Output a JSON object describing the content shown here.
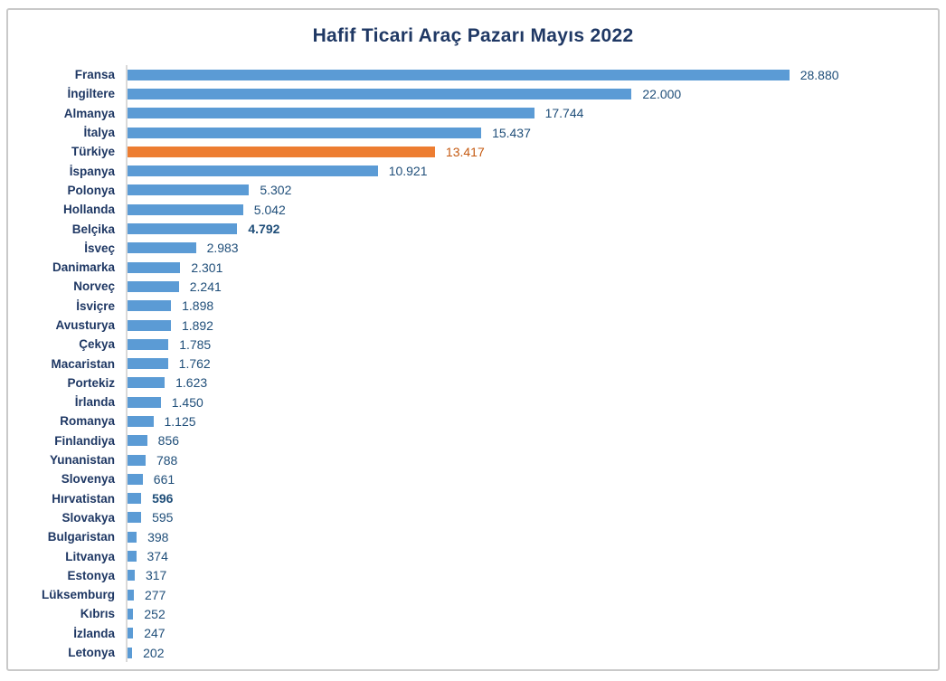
{
  "colors": {
    "bar": "#5B9BD5",
    "highlight_bar": "#ED7D31",
    "category_label": "#1F3864",
    "value_label": "#1F4E79",
    "highlight_value_label": "#C55A11",
    "axis_line": "#D9D9D9",
    "border": "#C9C9C9"
  },
  "chart_data": {
    "type": "bar",
    "orientation": "horizontal",
    "title": "Hafif Ticari Araç Pazarı Mayıs 2022",
    "categories": [
      "Fransa",
      "İngiltere",
      "Almanya",
      "İtalya",
      "Türkiye",
      "İspanya",
      "Polonya",
      "Hollanda",
      "Belçika",
      "İsveç",
      "Danimarka",
      "Norveç",
      "İsviçre",
      "Avusturya",
      "Çekya",
      "Macaristan",
      "Portekiz",
      "İrlanda",
      "Romanya",
      "Finlandiya",
      "Yunanistan",
      "Slovenya",
      "Hırvatistan",
      "Slovakya",
      "Bulgaristan",
      "Litvanya",
      "Estonya",
      "Lüksemburg",
      "Kıbrıs",
      "İzlanda",
      "Letonya"
    ],
    "values": [
      28880,
      22000,
      17744,
      15437,
      13417,
      10921,
      5302,
      5042,
      4792,
      2983,
      2301,
      2241,
      1898,
      1892,
      1785,
      1762,
      1623,
      1450,
      1125,
      856,
      788,
      661,
      596,
      595,
      398,
      374,
      317,
      277,
      252,
      247,
      202
    ],
    "value_labels": [
      "28.880",
      "22.000",
      "17.744",
      "15.437",
      "13.417",
      "10.921",
      "5.302",
      "5.042",
      "4.792",
      "2.983",
      "2.301",
      "2.241",
      "1.898",
      "1.892",
      "1.785",
      "1.762",
      "1.623",
      "1.450",
      "1.125",
      "856",
      "788",
      "661",
      "596",
      "595",
      "398",
      "374",
      "317",
      "277",
      "252",
      "247",
      "202"
    ],
    "highlight_category": "Türkiye",
    "bold_value_categories": [
      "Belçika",
      "Hırvatistan"
    ],
    "xlabel": "",
    "ylabel": "",
    "legend": "none",
    "gridlines": "off",
    "value_axis_ticks": "none"
  }
}
